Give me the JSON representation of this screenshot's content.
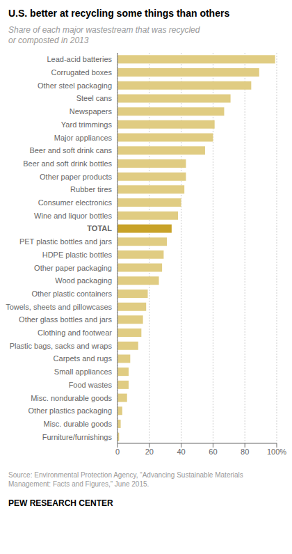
{
  "chart_data": {
    "type": "bar",
    "orientation": "horizontal",
    "title": "U.S. better at recycling some things than others",
    "subtitle": "Share of each major wastestream that was recycled\nor composted in 2013",
    "annotations": [
      "Source: Environmental Protection Agency, “Advancing Sustainable Materials\nManagement: Facts and Figures,” June 2015.",
      "PEW RESEARCH CENTER"
    ],
    "categories": [
      "Lead-acid batteries",
      "Corrugated boxes",
      "Other steel packaging",
      "Steel cans",
      "Newspapers",
      "Yard trimmings",
      "Major appliances",
      "Beer and soft drink cans",
      "Beer and soft drink bottles",
      "Other paper products",
      "Rubber tires",
      "Consumer electronics",
      "Wine and liquor bottles",
      "TOTAL",
      "PET plastic bottles and jars",
      "HDPE plastic bottles",
      "Other paper packaging",
      "Wood packaging",
      "Other plastic containers",
      "Towels, sheets and pillowcases",
      "Other glass bottles and jars",
      "Clothing and footwear",
      "Plastic bags, sacks and wraps",
      "Carpets and rugs",
      "Small appliances",
      "Food wastes",
      "Misc. nondurable goods",
      "Other plastics packaging",
      "Misc. durable goods",
      "Furniture/furnishings"
    ],
    "values": [
      99,
      89,
      84,
      71,
      67,
      61,
      60,
      55,
      43,
      43,
      42,
      40,
      38,
      34,
      31,
      29,
      28,
      26,
      19,
      18,
      16,
      15,
      13,
      8,
      7,
      7,
      6,
      3,
      2,
      1
    ],
    "colors": [
      "#e0cc82",
      "#e0cc82",
      "#e0cc82",
      "#e0cc82",
      "#e0cc82",
      "#e0cc82",
      "#e0cc82",
      "#e0cc82",
      "#e0cc82",
      "#e0cc82",
      "#e0cc82",
      "#e0cc82",
      "#e0cc82",
      "#c8a228",
      "#e0cc82",
      "#e0cc82",
      "#e0cc82",
      "#e0cc82",
      "#e0cc82",
      "#e0cc82",
      "#e0cc82",
      "#e0cc82",
      "#e0cc82",
      "#e0cc82",
      "#e0cc82",
      "#e0cc82",
      "#e0cc82",
      "#e0cc82",
      "#e0cc82",
      "#e0cc82"
    ],
    "xlim": [
      0,
      100
    ],
    "xticks": [
      0,
      20,
      40,
      60,
      80,
      {
        "value": 100,
        "label": "100%"
      }
    ],
    "grid": true
  }
}
